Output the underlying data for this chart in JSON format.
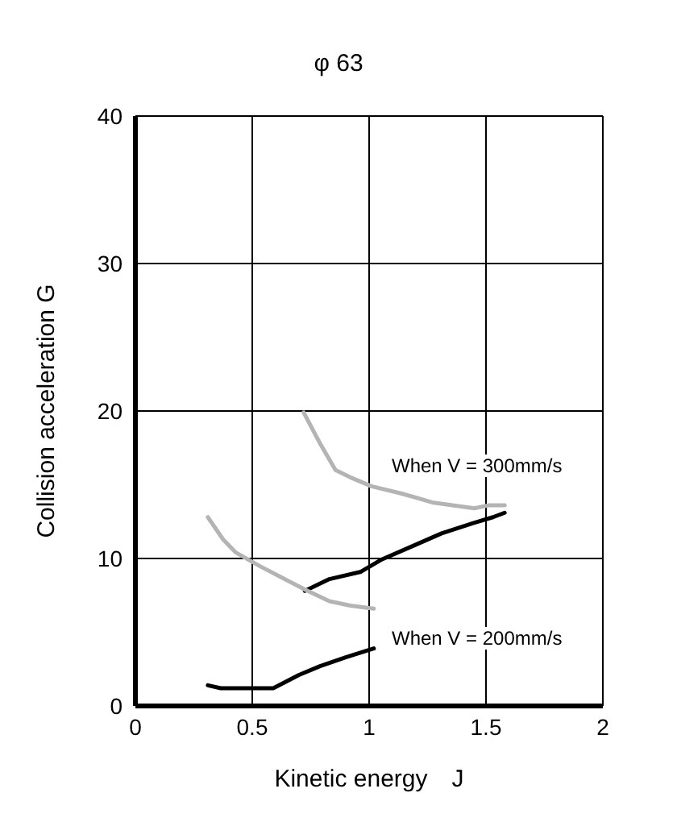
{
  "chart_data": {
    "type": "line",
    "title": "φ 63",
    "xlabel": "Kinetic energy　J",
    "ylabel": "Collision acceleration G",
    "xlim": [
      0,
      2
    ],
    "xticks": [
      0,
      0.5,
      1,
      1.5,
      2
    ],
    "ylim": [
      0,
      40
    ],
    "yticks": [
      0,
      10,
      20,
      30,
      40
    ],
    "grid": true,
    "marker": "none",
    "series": [
      {
        "color": "#b4b4b4",
        "x": [
          0.72,
          0.79,
          0.856,
          0.92,
          1.01,
          1.14,
          1.27,
          1.45,
          1.51,
          1.58
        ],
        "values": [
          19.9,
          17.8,
          16.0,
          15.5,
          14.9,
          14.4,
          13.8,
          13.4,
          13.6,
          13.6
        ]
      },
      {
        "color": "#000000",
        "x": [
          0.725,
          0.83,
          0.965,
          1.05,
          1.18,
          1.31,
          1.445,
          1.53,
          1.58
        ],
        "values": [
          7.8,
          8.6,
          9.1,
          9.9,
          10.8,
          11.7,
          12.4,
          12.8,
          13.1
        ]
      },
      {
        "color": "#b4b4b4",
        "x": [
          0.31,
          0.375,
          0.43,
          0.53,
          0.615,
          0.725,
          0.83,
          0.92,
          1.02
        ],
        "values": [
          12.8,
          11.3,
          10.4,
          9.5,
          8.8,
          7.9,
          7.1,
          6.8,
          6.6
        ]
      },
      {
        "color": "#000000",
        "x": [
          0.31,
          0.365,
          0.59,
          0.7,
          0.79,
          0.9,
          1.02
        ],
        "values": [
          1.4,
          1.2,
          1.2,
          2.1,
          2.7,
          3.3,
          3.9
        ]
      }
    ],
    "annotations": [
      "When V = 300mm/s",
      "When V = 200mm/s"
    ]
  }
}
